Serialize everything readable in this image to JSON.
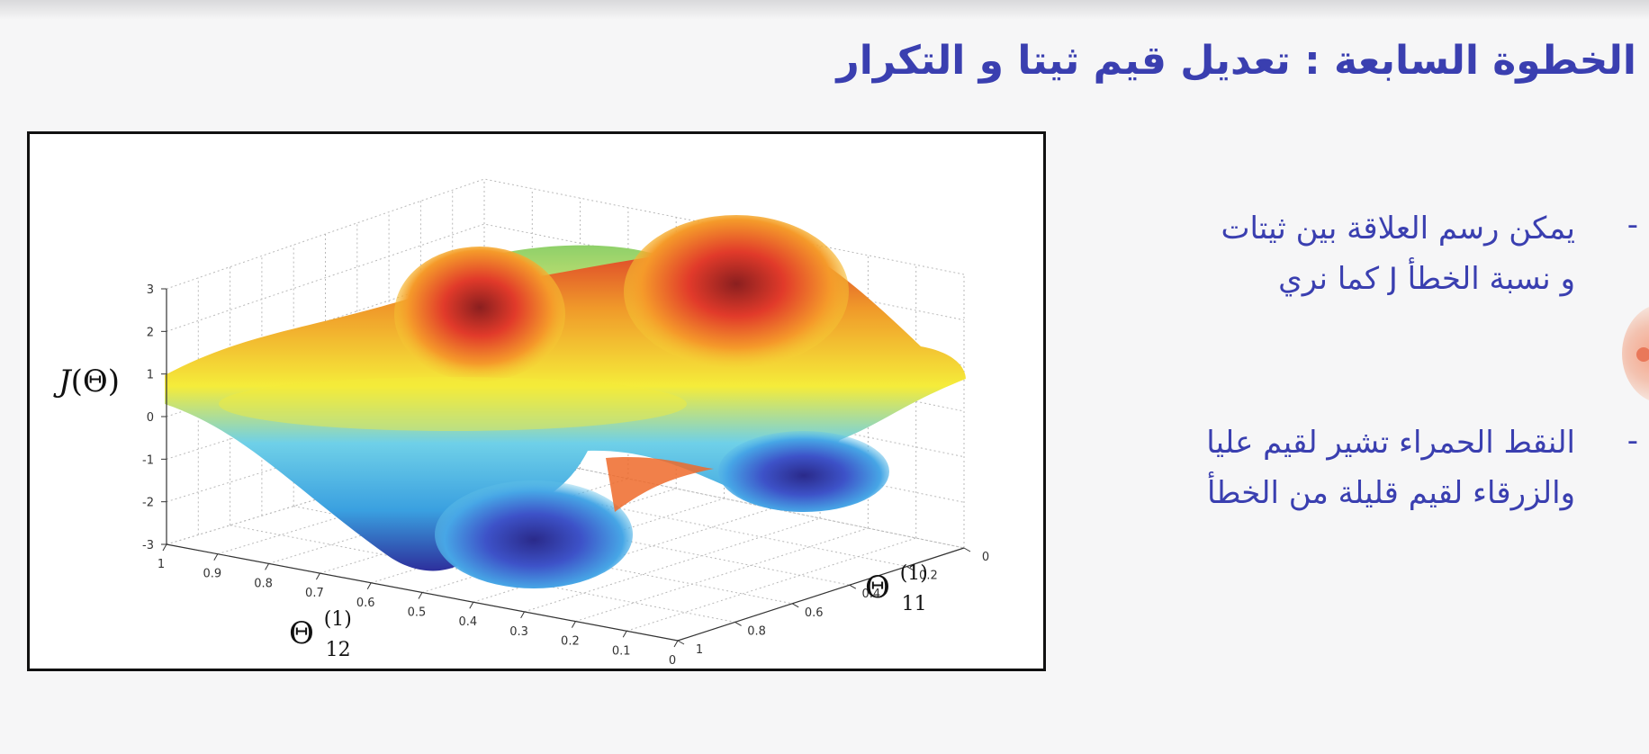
{
  "slide": {
    "title": "الخطوة  السابعة : تعديل قيم ثيتا و التكرار",
    "bullets": [
      {
        "dash": "-",
        "lines": [
          "يمكن رسم العلاقة بين ثيتات",
          "و نسبة الخطأ  J  كما نري"
        ]
      },
      {
        "dash": "-",
        "lines": [
          "النقط الحمراء تشير لقيم عليا",
          "والزرقاء لقيم قليلة من الخطأ"
        ]
      }
    ]
  },
  "chart_data": {
    "type": "surface",
    "title": "",
    "zlabel": "J(Θ)",
    "xlabel": "Θ(1)12",
    "ylabel": "Θ(1)11",
    "xlabel_base": "Θ",
    "xlabel_sup": "(1)",
    "xlabel_sub": "12",
    "ylabel_base": "Θ",
    "ylabel_sup": "(1)",
    "ylabel_sub": "11",
    "z_ticks": [
      "3",
      "2",
      "1",
      "0",
      "-1",
      "-2",
      "-3"
    ],
    "x_ticks": [
      "1",
      "0.9",
      "0.8",
      "0.7",
      "0.6",
      "0.5",
      "0.4",
      "0.3",
      "0.2",
      "0.1",
      "0"
    ],
    "y_ticks": [
      "1",
      "0.8",
      "0.6",
      "0.4",
      "0.2",
      "0"
    ],
    "zlim": [
      -3,
      3
    ],
    "xlim": [
      0,
      1
    ],
    "ylim": [
      0,
      1
    ],
    "grid": true,
    "colormap": [
      "#2d2f9c",
      "#3aa0e0",
      "#6fd0e8",
      "#f5ec3a",
      "#f09a2a",
      "#d9302a"
    ]
  }
}
